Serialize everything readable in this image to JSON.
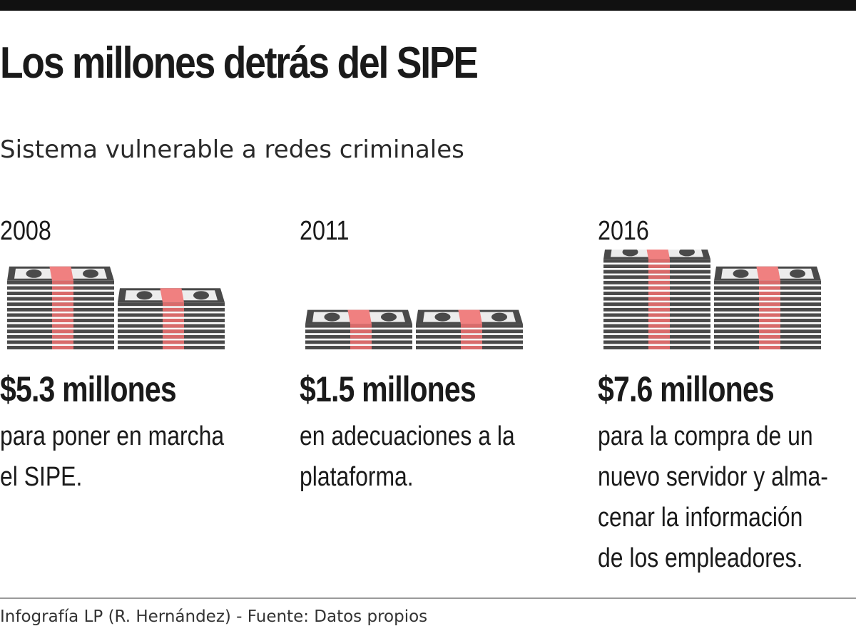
{
  "title": "Los millones detrás del SIPE",
  "subtitle": "Sistema vulnerable a redes criminales",
  "colors": {
    "bill": "#4a4a4a",
    "bill_dark": "#2e2e2e",
    "bill_face": "#ececec",
    "band": "#f08080",
    "band_dark": "#d96a6a"
  },
  "icons": [
    "money-stack-icon"
  ],
  "items": [
    {
      "year": "2008",
      "amount": "$5.3 millones",
      "description_lines": [
        "para poner en marcha",
        "el SIPE."
      ]
    },
    {
      "year": "2011",
      "amount": "$1.5 millones",
      "description_lines": [
        "en adecuaciones a la",
        "plataforma."
      ]
    },
    {
      "year": "2016",
      "amount": "$7.6 millones",
      "description_lines": [
        "para la compra de un",
        "nuevo servidor y alma-",
        "cenar la información",
        "de los  empleadores."
      ]
    }
  ],
  "credit": "Infografía LP (R. Hernández) - Fuente: Datos propios"
}
